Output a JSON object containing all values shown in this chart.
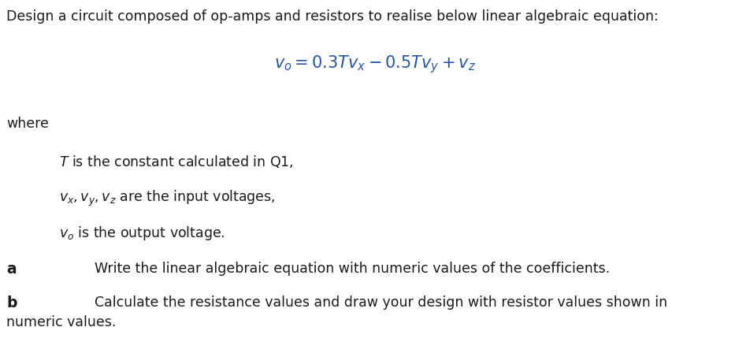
{
  "background_color": "#ffffff",
  "title_text": "Design a circuit composed of op-amps and resistors to realise below linear algebraic equation:",
  "equation": "$v_o = 0.3Tv_x - 0.5Tv_y + v_z$",
  "where_text": "where",
  "bullet1_a": "$T$",
  "bullet1_b": " is the constant calculated in Q1,",
  "bullet2": "$v_x, v_y, v_z$ are the input voltages,",
  "bullet3_a": "$v_o$",
  "bullet3_b": " is the output voltage.",
  "part_a_label": "a",
  "part_a_text": "Write the linear algebraic equation with numeric values of the coefficients.",
  "part_b_label": "b",
  "part_b_line1": "Calculate the resistance values and draw your design with resistor values shown in",
  "part_b_line2": "numeric values.",
  "text_color": "#1a1a1a",
  "equation_color": "#2255aa",
  "font_size_title": 12.5,
  "font_size_eq": 15,
  "font_size_body": 12.5,
  "font_size_label": 13.5,
  "fig_width": 9.52,
  "fig_height": 4.34,
  "dpi": 100
}
